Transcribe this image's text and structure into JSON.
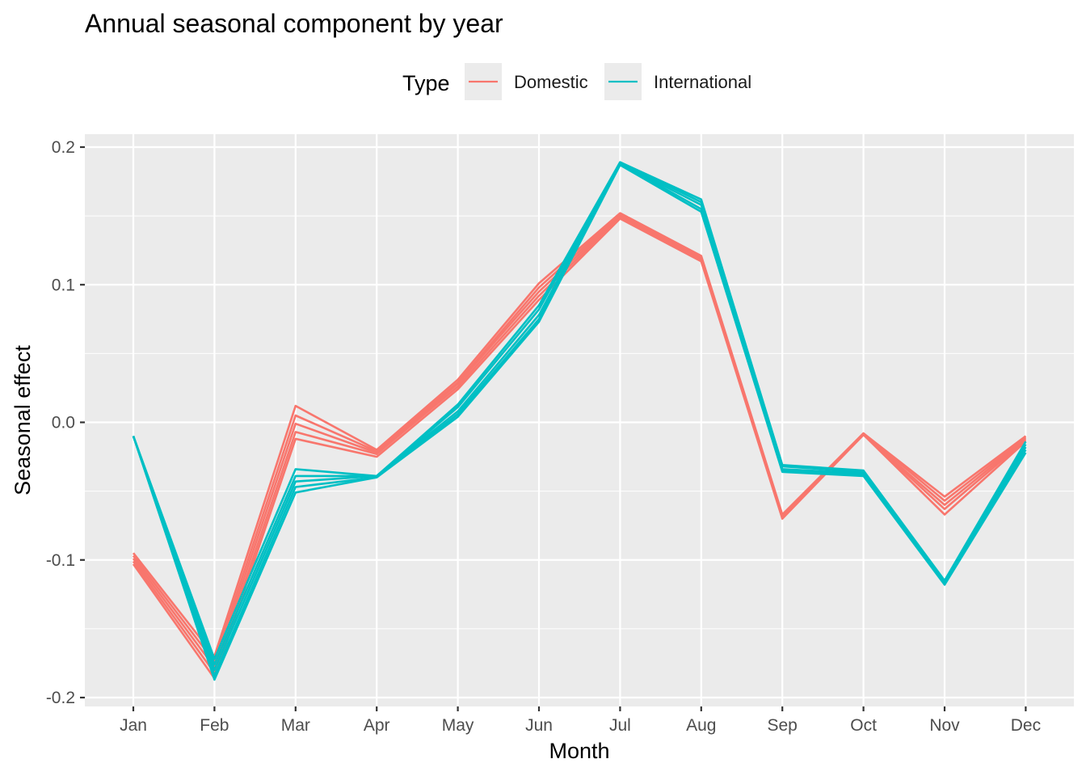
{
  "chart_data": {
    "type": "line",
    "title": "Annual seasonal component by year",
    "xlabel": "Month",
    "ylabel": "Seasonal effect",
    "categories": [
      "Jan",
      "Feb",
      "Mar",
      "Apr",
      "May",
      "Jun",
      "Jul",
      "Aug",
      "Sep",
      "Oct",
      "Nov",
      "Dec"
    ],
    "ylim": [
      -0.2,
      0.2
    ],
    "yticks": [
      0.2,
      0.1,
      0.0,
      -0.1,
      -0.2
    ],
    "ytick_labels": [
      "0.2",
      "0.1",
      "0.0",
      "-0.1",
      "-0.2"
    ],
    "grid": true,
    "legend": {
      "title": "Type",
      "position": "top",
      "entries": [
        "Domestic",
        "International"
      ]
    },
    "colors": {
      "Domestic": "#F8766D",
      "International": "#00BFC4",
      "panel": "#EBEBEB",
      "grid": "#FFFFFF"
    },
    "series": [
      {
        "group": "Domestic",
        "values": [
          -0.095,
          -0.17,
          0.012,
          -0.02,
          0.031,
          0.101,
          0.152,
          0.121,
          -0.067,
          -0.008,
          -0.054,
          -0.01
        ]
      },
      {
        "group": "Domestic",
        "values": [
          -0.097,
          -0.174,
          0.005,
          -0.021,
          0.029,
          0.098,
          0.151,
          0.12,
          -0.068,
          -0.008,
          -0.057,
          -0.011
        ]
      },
      {
        "group": "Domestic",
        "values": [
          -0.099,
          -0.178,
          -0.001,
          -0.022,
          0.028,
          0.095,
          0.15,
          0.119,
          -0.068,
          -0.009,
          -0.06,
          -0.012
        ]
      },
      {
        "group": "Domestic",
        "values": [
          -0.101,
          -0.182,
          -0.007,
          -0.023,
          0.026,
          0.092,
          0.149,
          0.118,
          -0.069,
          -0.009,
          -0.063,
          -0.013
        ]
      },
      {
        "group": "Domestic",
        "values": [
          -0.103,
          -0.186,
          -0.012,
          -0.025,
          0.024,
          0.089,
          0.148,
          0.117,
          -0.07,
          -0.009,
          -0.067,
          -0.014
        ]
      },
      {
        "group": "International",
        "values": [
          -0.01,
          -0.172,
          -0.034,
          -0.039,
          0.013,
          0.085,
          0.189,
          0.162,
          -0.031,
          -0.035,
          -0.115,
          -0.014
        ]
      },
      {
        "group": "International",
        "values": [
          -0.01,
          -0.176,
          -0.039,
          -0.039,
          0.011,
          0.082,
          0.189,
          0.16,
          -0.032,
          -0.036,
          -0.116,
          -0.016
        ]
      },
      {
        "group": "International",
        "values": [
          -0.01,
          -0.18,
          -0.043,
          -0.039,
          0.008,
          0.078,
          0.188,
          0.158,
          -0.034,
          -0.037,
          -0.117,
          -0.018
        ]
      },
      {
        "group": "International",
        "values": [
          -0.01,
          -0.184,
          -0.047,
          -0.04,
          0.006,
          0.075,
          0.188,
          0.155,
          -0.035,
          -0.038,
          -0.117,
          -0.02
        ]
      },
      {
        "group": "International",
        "values": [
          -0.01,
          -0.187,
          -0.051,
          -0.04,
          0.004,
          0.073,
          0.187,
          0.153,
          -0.036,
          -0.039,
          -0.118,
          -0.022
        ]
      }
    ]
  }
}
